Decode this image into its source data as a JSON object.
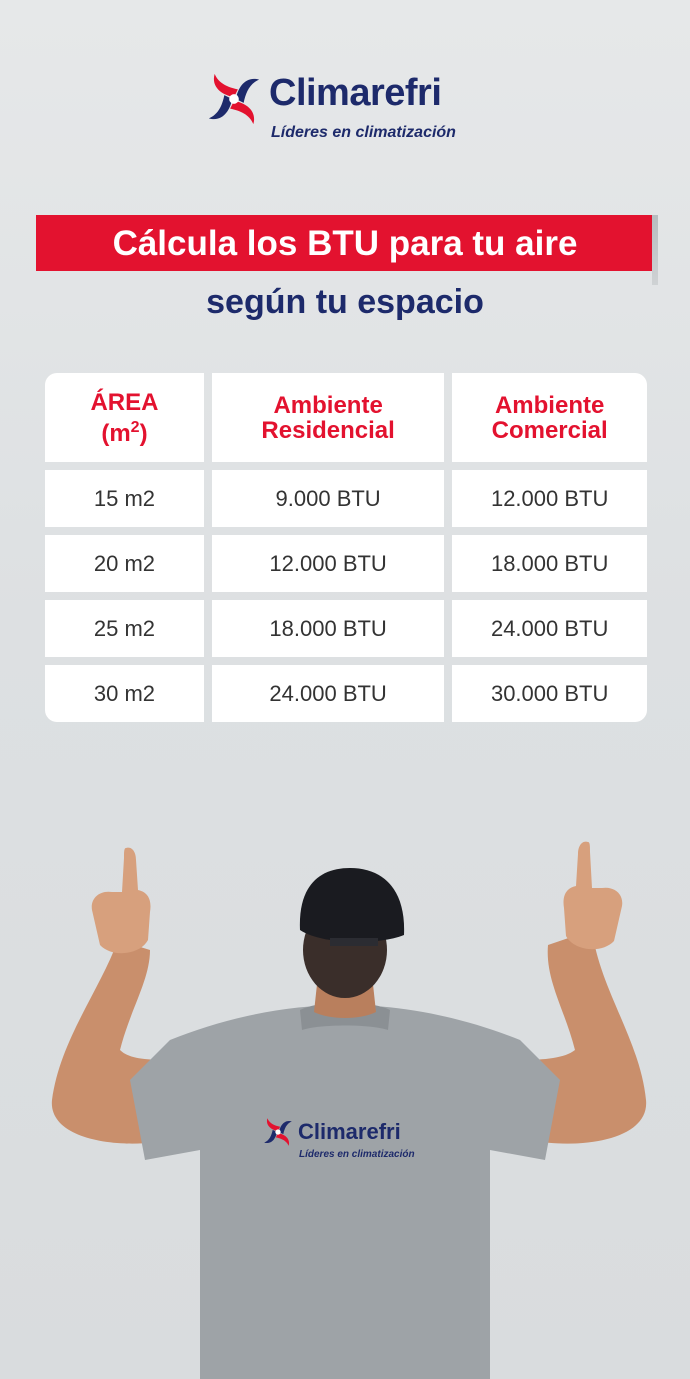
{
  "logo": {
    "brand": "Climarefri",
    "tagline": "Líderes en climatización",
    "icon": "fan-swirl-icon",
    "colors": {
      "red": "#e3122f",
      "navy": "#1d2a6b"
    }
  },
  "title": {
    "line1": "Cálcula los BTU para tu aire",
    "line2": "según tu espacio"
  },
  "table": {
    "headers": [
      {
        "line1": "ÁREA",
        "line2": "(m2)"
      },
      {
        "line1": "Ambiente",
        "line2": "Residencial"
      },
      {
        "line1": "Ambiente",
        "line2": "Comercial"
      }
    ],
    "rows": [
      [
        "15 m2",
        "9.000 BTU",
        "12.000 BTU"
      ],
      [
        "20 m2",
        "12.000 BTU",
        "18.000 BTU"
      ],
      [
        "25 m2",
        "18.000 BTU",
        "24.000 BTU"
      ],
      [
        "30 m2",
        "24.000 BTU",
        "30.000 BTU"
      ]
    ]
  },
  "shirt_logo": {
    "brand": "Climarefri",
    "tagline": "Líderes en climatización"
  }
}
